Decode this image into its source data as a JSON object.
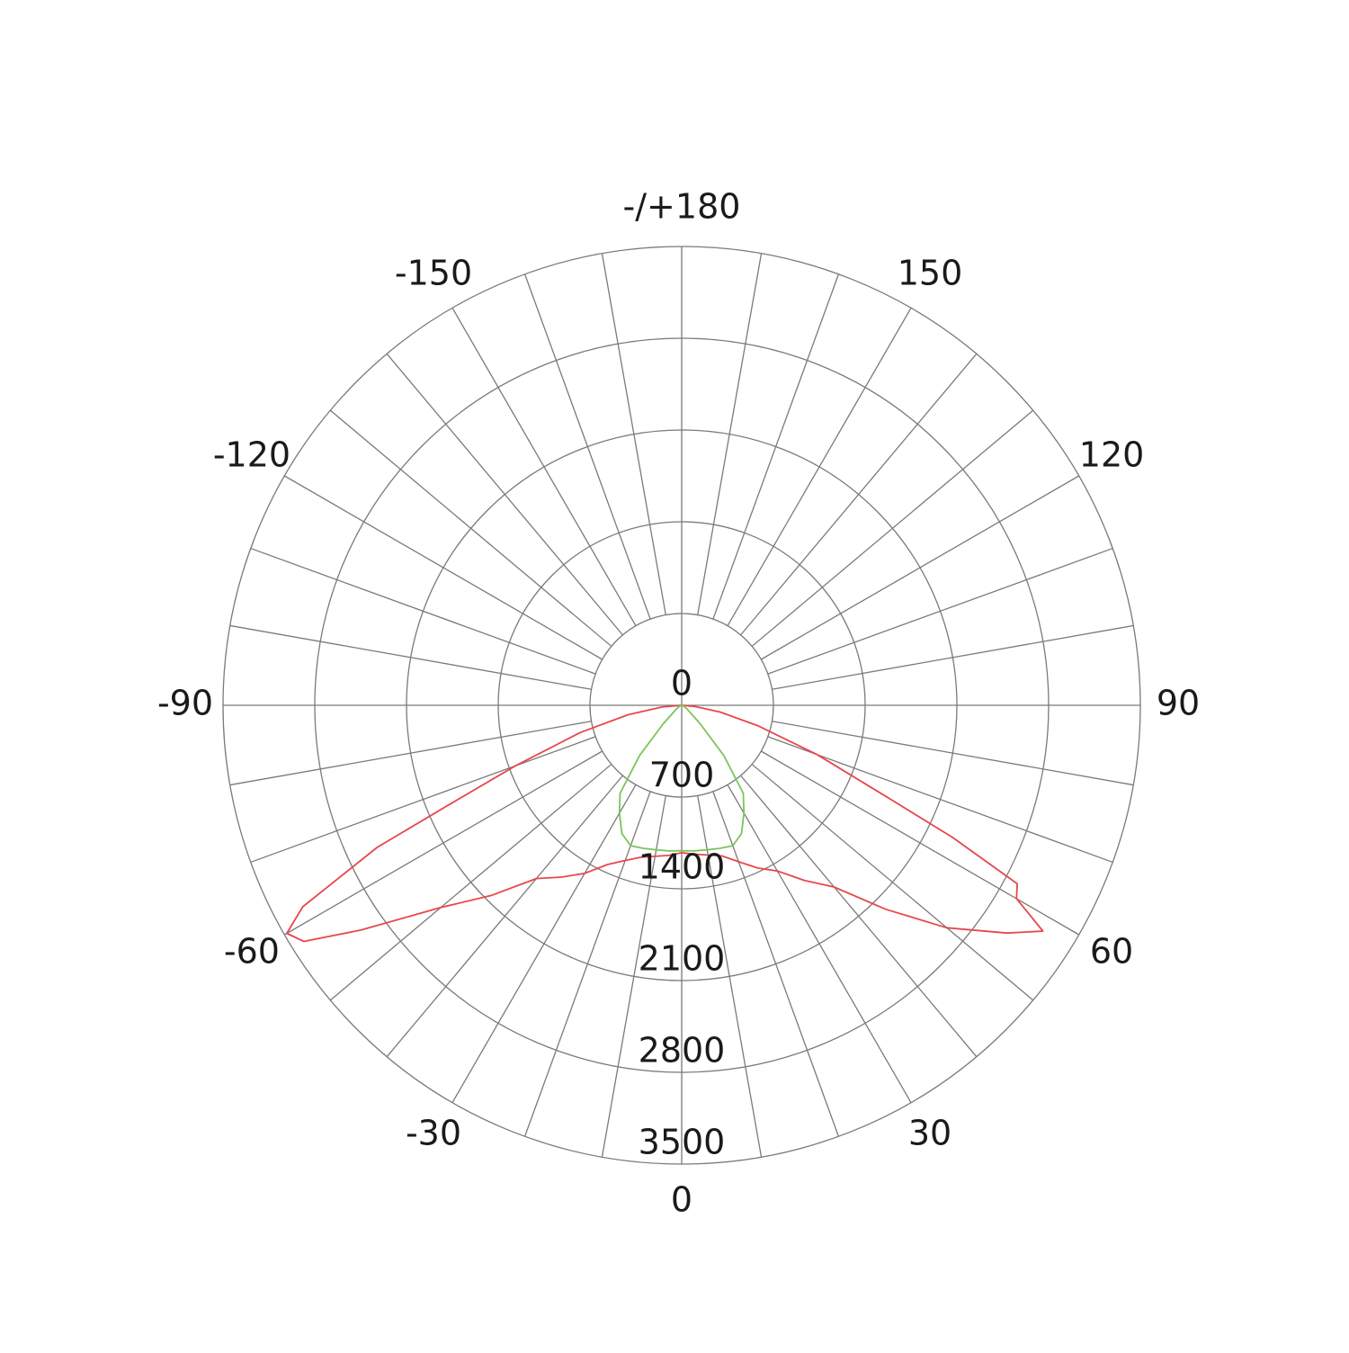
{
  "chart_data": {
    "type": "polar",
    "x": [
      -90,
      -85,
      -80,
      -75,
      -70,
      -67,
      -65,
      -62,
      -60,
      -58,
      -55,
      -50,
      -45,
      -40,
      -35,
      -30,
      -25,
      -20,
      -15,
      -10,
      -5,
      0,
      5,
      10,
      15,
      20,
      25,
      30,
      35,
      40,
      45,
      50,
      55,
      58,
      60,
      62,
      64,
      66,
      70,
      75,
      80,
      85,
      90
    ],
    "series": [
      {
        "color": "#e8474c",
        "values": [
          0,
          150,
          415,
          800,
          1350,
          1900,
          2565,
          3275,
          3480,
          3400,
          2990,
          2400,
          2050,
          1725,
          1600,
          1480,
          1340,
          1260,
          1200,
          1170,
          1150,
          1125,
          1140,
          1160,
          1190,
          1270,
          1370,
          1460,
          1630,
          1810,
          2200,
          2640,
          3030,
          3250,
          2950,
          2900,
          2300,
          1700,
          1100,
          600,
          300,
          100,
          0
        ]
      },
      {
        "color": "#7cc45a",
        "values": [
          0,
          0,
          0,
          5,
          10,
          15,
          20,
          25,
          30,
          35,
          50,
          80,
          200,
          500,
          820,
          950,
          1080,
          1140,
          1130,
          1120,
          1115,
          1110,
          1115,
          1120,
          1130,
          1140,
          1080,
          950,
          820,
          500,
          200,
          80,
          50,
          35,
          30,
          25,
          20,
          15,
          10,
          5,
          0,
          0,
          0
        ]
      }
    ],
    "rlim": [
      0,
      3500
    ],
    "rticks": [
      0,
      700,
      1400,
      2100,
      2800,
      3500
    ],
    "angle_ticks": [
      0,
      30,
      60,
      90,
      120,
      150,
      {
        "value": 180,
        "label": "-/+180"
      },
      -150,
      -120,
      -90,
      -60,
      -30
    ],
    "grid": true
  }
}
